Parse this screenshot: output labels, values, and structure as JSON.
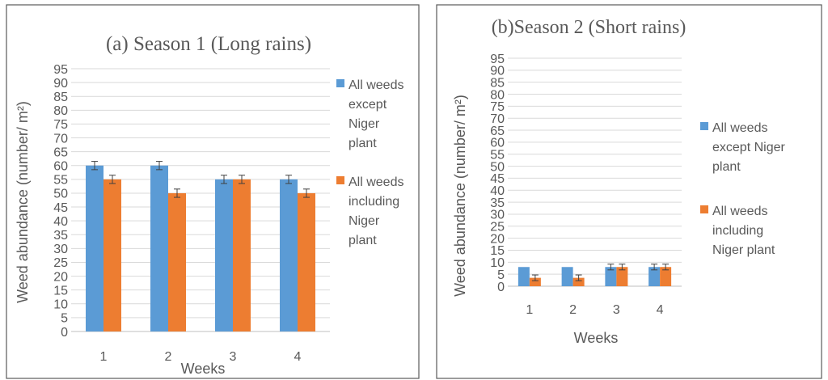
{
  "colors": {
    "series1": "#5b9bd5",
    "series2": "#ed7d31"
  },
  "chart_data": [
    {
      "type": "bar",
      "title": "(a) Season 1 (Long rains)",
      "xlabel": "Weeks",
      "ylabel": "Weed abundance (number/ m²)",
      "categories": [
        "1",
        "2",
        "3",
        "4"
      ],
      "ylim": [
        0,
        95
      ],
      "yticks": [
        "0",
        "5",
        "10",
        "15",
        "20",
        "25",
        "30",
        "35",
        "40",
        "45",
        "50",
        "55",
        "60",
        "65",
        "70",
        "75",
        "80",
        "85",
        "90",
        "95"
      ],
      "grid": true,
      "legend": "right",
      "series": [
        {
          "name": "All weeds except Niger plant",
          "legend_lines": [
            "All weeds",
            "except",
            "Niger",
            "plant"
          ],
          "values": [
            60,
            60,
            55,
            55
          ],
          "errors": [
            1.5,
            1.5,
            1.5,
            1.5
          ]
        },
        {
          "name": "All weeds including Niger plant",
          "legend_lines": [
            "All weeds",
            "including",
            "Niger",
            "plant"
          ],
          "values": [
            55,
            50,
            55,
            50
          ],
          "errors": [
            1.5,
            1.5,
            1.5,
            1.5
          ]
        }
      ]
    },
    {
      "type": "bar",
      "title": "(b)Season 2 (Short rains)",
      "xlabel": "Weeks",
      "ylabel": "Weed abundance (number/ m²)",
      "categories": [
        "1",
        "2",
        "3",
        "4"
      ],
      "ylim": [
        0,
        95
      ],
      "yticks": [
        "0",
        "5",
        "10",
        "15",
        "20",
        "25",
        "30",
        "35",
        "40",
        "45",
        "50",
        "55",
        "60",
        "65",
        "70",
        "75",
        "80",
        "85",
        "90",
        "95"
      ],
      "grid": true,
      "legend": "right",
      "series": [
        {
          "name": "All weeds except Niger plant",
          "legend_lines": [
            "All weeds",
            "except Niger",
            "plant"
          ],
          "values": [
            8,
            8,
            8,
            8
          ],
          "errors": [
            0,
            0,
            1.2,
            1.2
          ]
        },
        {
          "name": "All weeds including Niger plant",
          "legend_lines": [
            "All weeds",
            "including",
            "Niger plant"
          ],
          "values": [
            3.5,
            3.5,
            8,
            8
          ],
          "errors": [
            1.2,
            1.2,
            1.2,
            1.2
          ]
        }
      ]
    }
  ]
}
